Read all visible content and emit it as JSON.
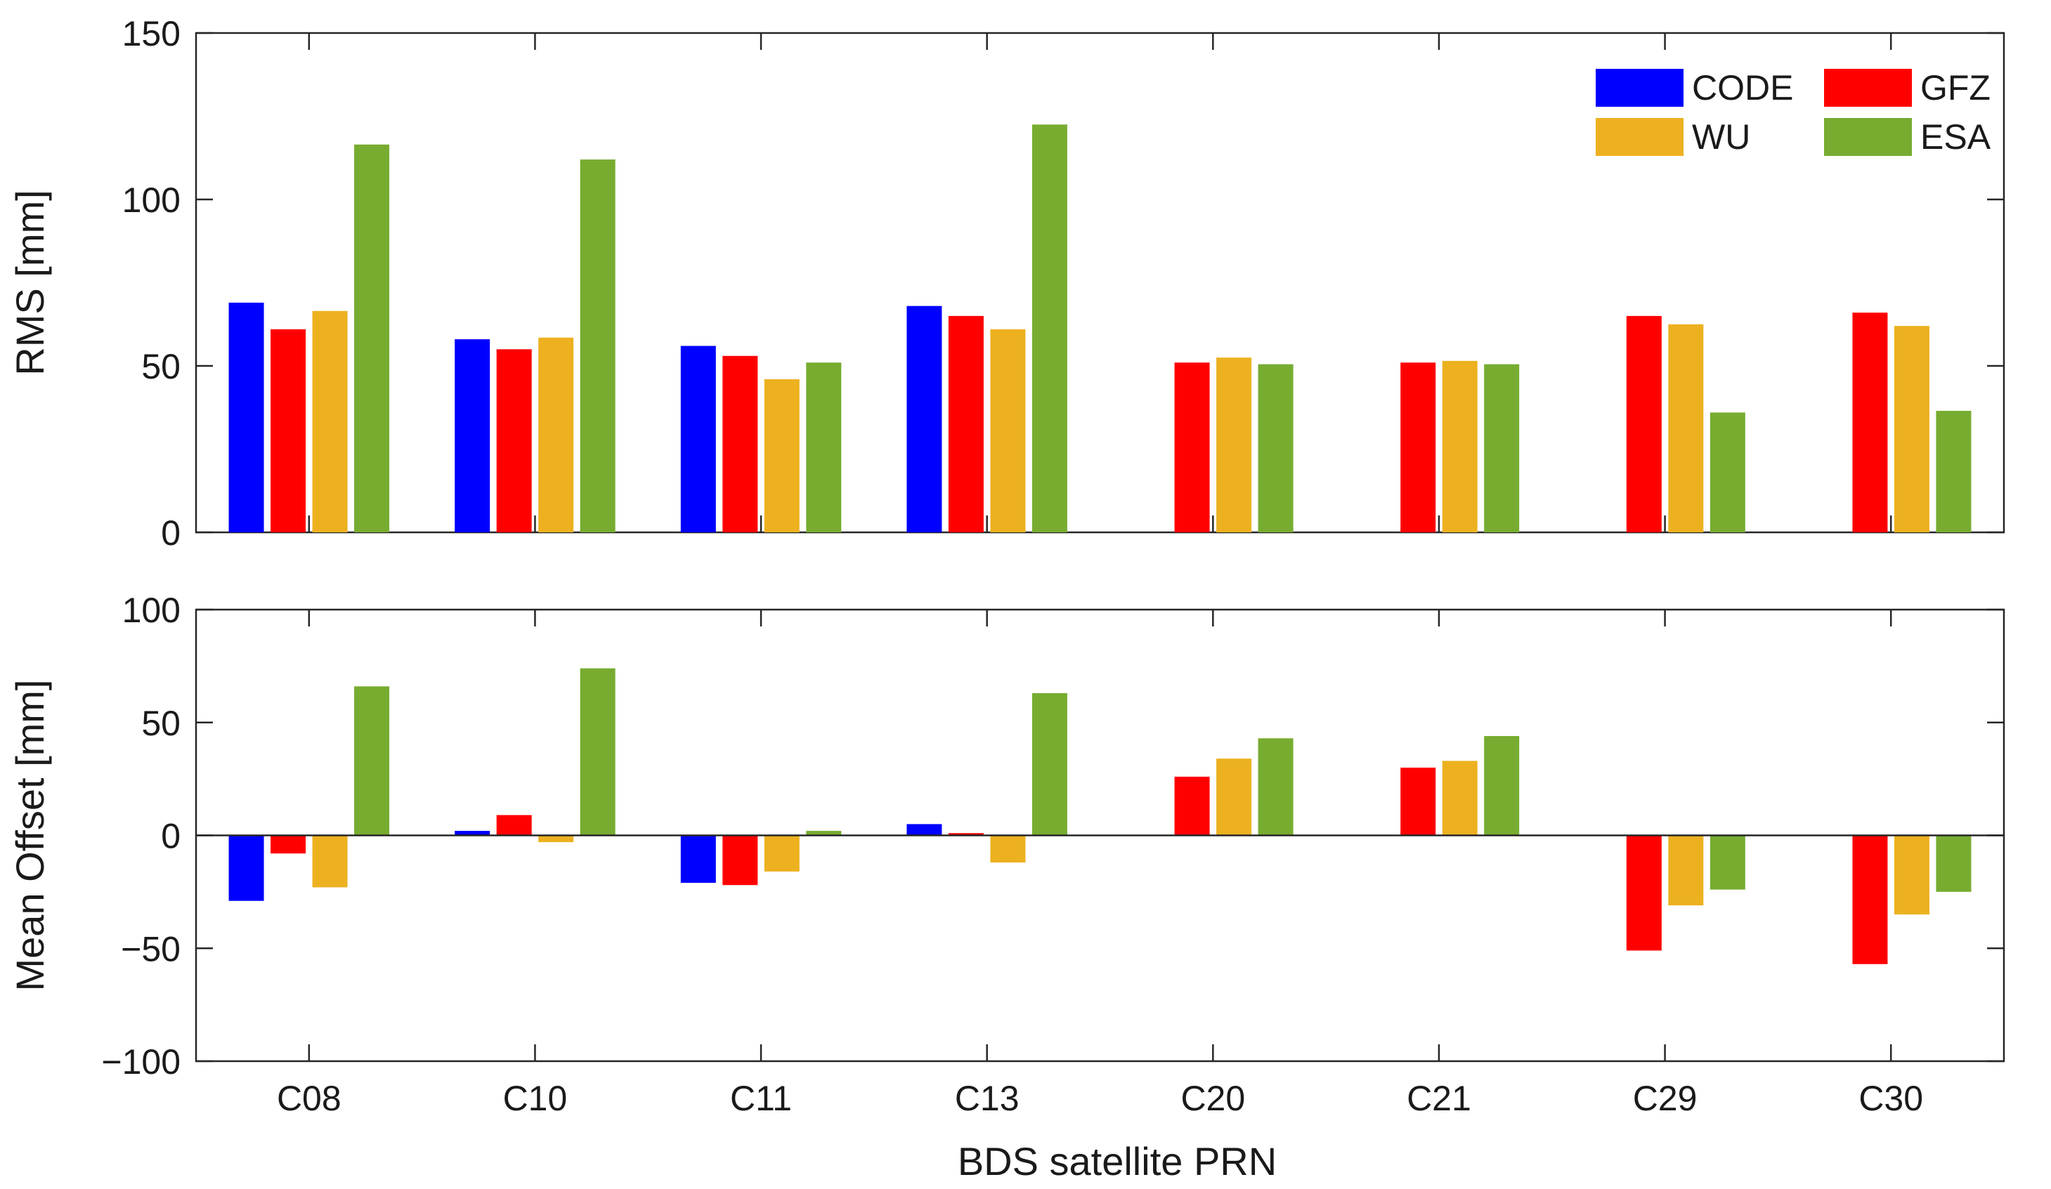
{
  "chart_data": {
    "type": "bar",
    "categories": [
      "C08",
      "C10",
      "C11",
      "C13",
      "C20",
      "C21",
      "C29",
      "C30"
    ],
    "xlabel": "BDS satellite PRN",
    "legend": {
      "placement": "top-right",
      "entries": [
        "CODE",
        "GFZ",
        "WU",
        "ESA"
      ]
    },
    "colors": {
      "CODE": "#0000ff",
      "GFZ": "#ff0000",
      "WU": "#edb120",
      "ESA": "#77ac30"
    },
    "panels": [
      {
        "id": "rms",
        "ylabel": "RMS [mm]",
        "ylim": [
          0,
          150
        ],
        "yticks": [
          0,
          50,
          100,
          150
        ],
        "ytick_labels": [
          "0",
          "50",
          "100",
          "150"
        ],
        "series": [
          {
            "name": "CODE",
            "values": [
              69,
              58,
              56,
              68,
              null,
              null,
              null,
              null
            ]
          },
          {
            "name": "GFZ",
            "values": [
              61,
              55,
              53,
              65,
              51,
              51,
              65,
              66
            ]
          },
          {
            "name": "WU",
            "values": [
              66.5,
              58.5,
              46,
              61,
              52.5,
              51.5,
              62.5,
              62
            ]
          },
          {
            "name": "ESA",
            "values": [
              116.5,
              112,
              51,
              122.5,
              50.5,
              50.5,
              36,
              36.5
            ]
          }
        ]
      },
      {
        "id": "mean_offset",
        "ylabel": "Mean Offset [mm]",
        "ylim": [
          -100,
          100
        ],
        "yticks": [
          -100,
          -50,
          0,
          50,
          100
        ],
        "ytick_labels": [
          "−100",
          "−50",
          "0",
          "50",
          "100"
        ],
        "series": [
          {
            "name": "CODE",
            "values": [
              -29,
              2,
              -21,
              5,
              null,
              null,
              null,
              null
            ]
          },
          {
            "name": "GFZ",
            "values": [
              -8,
              9,
              -22,
              1,
              26,
              30,
              -51,
              -57
            ]
          },
          {
            "name": "WU",
            "values": [
              -23,
              -3,
              -16,
              -12,
              34,
              33,
              -31,
              -35
            ]
          },
          {
            "name": "ESA",
            "values": [
              66,
              74,
              2,
              63,
              43,
              44,
              -24,
              -25
            ]
          }
        ]
      }
    ]
  }
}
